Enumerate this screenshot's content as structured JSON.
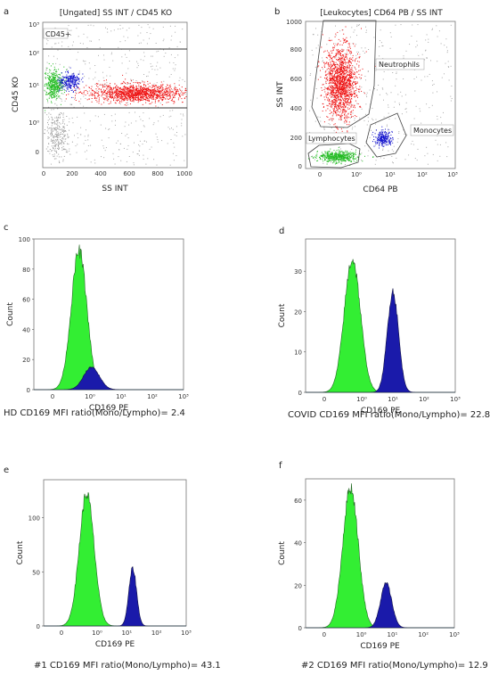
{
  "chart_data": [
    {
      "type": "scatter",
      "panel": "a",
      "title": "[Ungated] SS INT / CD45 KO",
      "xlabel": "SS INT",
      "ylabel": "CD45 KO",
      "xticks": [
        "0",
        "200",
        "400",
        "600",
        "800",
        "1000"
      ],
      "yticks": [
        "0",
        "10⁰",
        "10¹",
        "10²",
        "10³"
      ],
      "xlim": [
        0,
        1000
      ],
      "gates": [
        {
          "label": "CD45+"
        }
      ],
      "populations": [
        {
          "name": "Lymphocytes",
          "color": "#22bb22",
          "x_center": 70,
          "y_center_log": 0.95
        },
        {
          "name": "Monocytes",
          "color": "#1111cc",
          "x_center": 175,
          "y_center_log": 1.05
        },
        {
          "name": "Neutrophils",
          "color": "#ee1111",
          "x_center": 600,
          "y_center_log": 0.85
        },
        {
          "name": "Debris",
          "color": "#999999",
          "x_center": 70,
          "y_center_log": -0.4
        },
        {
          "name": "Background",
          "color": "#888888"
        }
      ]
    },
    {
      "type": "scatter",
      "panel": "b",
      "title": "[Leukocytes] CD64 PB / SS INT",
      "xlabel": "CD64 PB",
      "ylabel": "SS INT",
      "xticks": [
        "0",
        "10⁰",
        "10¹",
        "10²",
        "10³"
      ],
      "yticks": [
        "0",
        "200",
        "400",
        "600",
        "800",
        "1000"
      ],
      "ylim": [
        0,
        1000
      ],
      "gates": [
        {
          "label": "Neutrophils"
        },
        {
          "label": "Monocytes"
        },
        {
          "label": "Lymphocytes"
        }
      ],
      "populations": [
        {
          "name": "Neutrophils",
          "color": "#ee1111",
          "y_center": 600
        },
        {
          "name": "Monocytes",
          "color": "#1111cc",
          "y_center": 200
        },
        {
          "name": "Lymphocytes",
          "color": "#22bb22",
          "y_center": 70
        }
      ]
    },
    {
      "type": "area",
      "panel": "c",
      "xlabel": "CD169 PE",
      "ylabel": "Count",
      "yticks": [
        "0",
        "20",
        "40",
        "60",
        "80",
        "100"
      ],
      "ylim": [
        0,
        100
      ],
      "xticks": [
        "0",
        "10⁰",
        "10¹",
        "10²",
        "10³"
      ],
      "series": [
        {
          "name": "Lymphocytes",
          "color": "#33ee33",
          "peak_x_log": -0.35,
          "peak": 92,
          "sigma": 0.25
        },
        {
          "name": "Monocytes",
          "color": "#1a1aaa",
          "peak_x_log": 0.05,
          "peak": 15,
          "sigma": 0.25
        }
      ],
      "caption": "HD CD169 MFI ratio(Mono/Lympho)= 2.4"
    },
    {
      "type": "area",
      "panel": "d",
      "xlabel": "CD169 PE",
      "ylabel": "Count",
      "yticks": [
        "0",
        "10",
        "20",
        "30"
      ],
      "ylim": [
        0,
        38
      ],
      "xticks": [
        "0",
        "10⁰",
        "10¹",
        "10²",
        "10³"
      ],
      "series": [
        {
          "name": "Lymphocytes",
          "color": "#33ee33",
          "peak_x_log": -0.3,
          "peak": 33,
          "sigma": 0.26
        },
        {
          "name": "Monocytes",
          "color": "#1a1aaa",
          "peak_x_log": 1.0,
          "peak": 25,
          "sigma": 0.18
        }
      ],
      "caption": "COVID CD169 MFI ratio(Mono/Lympho)= 22.8"
    },
    {
      "type": "area",
      "panel": "e",
      "xlabel": "CD169 PE",
      "ylabel": "Count",
      "yticks": [
        "0",
        "50",
        "100"
      ],
      "ylim": [
        0,
        135
      ],
      "xticks": [
        "0",
        "10⁰",
        "10¹",
        "10²",
        "10³"
      ],
      "series": [
        {
          "name": "Lymphocytes",
          "color": "#33ee33",
          "peak_x_log": -0.35,
          "peak": 122,
          "sigma": 0.25
        },
        {
          "name": "Monocytes",
          "color": "#1a1aaa",
          "peak_x_log": 1.2,
          "peak": 53,
          "sigma": 0.13
        }
      ],
      "caption": "#1 CD169 MFI ratio(Mono/Lympho)= 43.1"
    },
    {
      "type": "area",
      "panel": "f",
      "xlabel": "CD169 PE",
      "ylabel": "Count",
      "yticks": [
        "0",
        "20",
        "40",
        "60"
      ],
      "ylim": [
        0,
        70
      ],
      "xticks": [
        "0",
        "10⁰",
        "10¹",
        "10²",
        "10³"
      ],
      "series": [
        {
          "name": "Lymphocytes",
          "color": "#33ee33",
          "peak_x_log": -0.35,
          "peak": 66,
          "sigma": 0.25
        },
        {
          "name": "Monocytes",
          "color": "#1a1aaa",
          "peak_x_log": 0.8,
          "peak": 21,
          "sigma": 0.18
        }
      ],
      "caption": "#2 CD169 MFI ratio(Mono/Lympho)= 12.9"
    }
  ]
}
